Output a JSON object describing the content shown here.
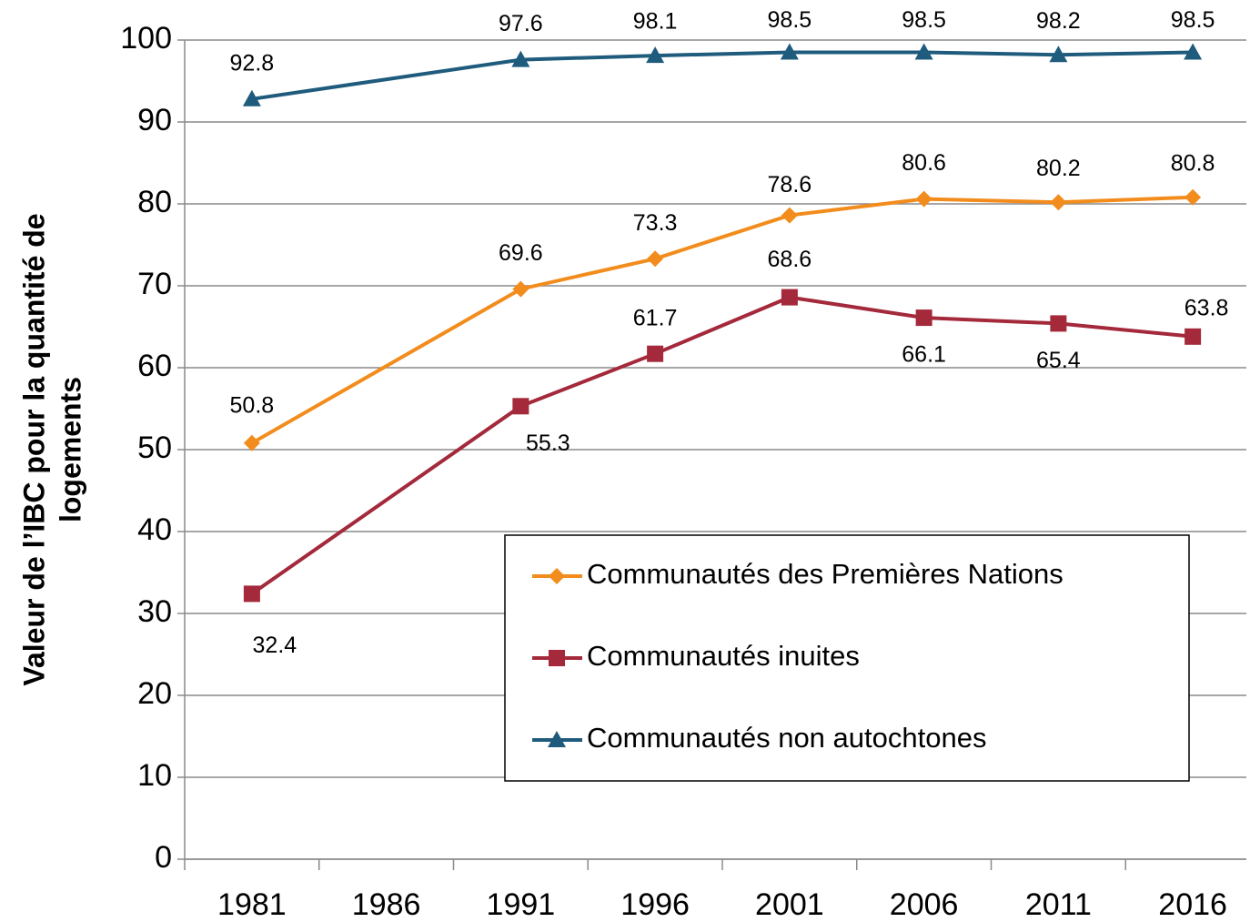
{
  "chart_data": {
    "type": "line",
    "ylabel": [
      "Valeur de l’IBC pour la quantité de",
      "logements"
    ],
    "x": [
      1981,
      1991,
      1996,
      2001,
      2006,
      2011,
      2016
    ],
    "xlim": [
      1978.5,
      2018.5
    ],
    "xticks": [
      1981,
      1986,
      1991,
      1996,
      2001,
      2006,
      2011,
      2016
    ],
    "ylim": [
      0,
      100
    ],
    "yticks": [
      0,
      10,
      20,
      30,
      40,
      50,
      60,
      70,
      80,
      90,
      100
    ],
    "grid": true,
    "series": [
      {
        "name": "Communautés des Premières Nations",
        "color": "#f28c1c",
        "marker": "diamond",
        "values": [
          50.8,
          69.6,
          73.3,
          78.6,
          80.6,
          80.2,
          80.8
        ]
      },
      {
        "name": "Communautés inuites",
        "color": "#a3293b",
        "marker": "square",
        "values": [
          32.4,
          55.3,
          61.7,
          68.6,
          66.1,
          65.4,
          63.8
        ]
      },
      {
        "name": "Communautés non autochtones",
        "color": "#1f5b7c",
        "marker": "triangle",
        "values": [
          92.8,
          97.6,
          98.1,
          98.5,
          98.5,
          98.2,
          98.5
        ]
      }
    ]
  }
}
